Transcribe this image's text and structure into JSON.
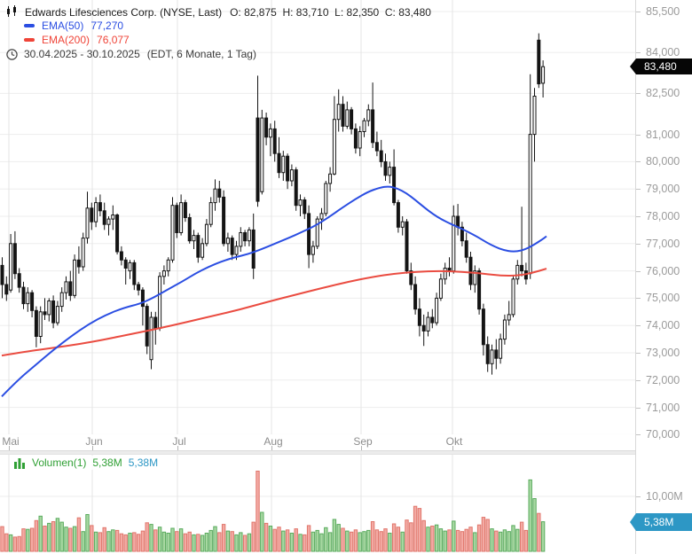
{
  "header": {
    "title": "Edwards Lifesciences Corp. (NYSE, Last)",
    "ohlc": "O: 82,875  H: 83,710  L: 82,350  C: 83,480",
    "ema50_label": "EMA(50)",
    "ema50_value": "77,270",
    "ema200_label": "EMA(200)",
    "ema200_value": "76,077",
    "date_range": "30.04.2025 - 30.10.2025",
    "range_info": "(EDT, 6 Monate, 1 Tag)"
  },
  "price_axis": {
    "last_price_label": "83,480"
  },
  "volume_panel": {
    "legend_label": "Volumen(1)",
    "value_green": "5,38M",
    "value_blue": "5,38M",
    "badge_label": "5,38M"
  },
  "colors": {
    "grid": "#ededed",
    "grid_v": "#e4e4e4",
    "candle": "#141414",
    "candle_up_fill": "#ffffff",
    "ema50": "#2b4ee2",
    "ema200": "#ea4c41",
    "vol_up_fill": "#a8d8a2",
    "vol_up_stroke": "#5aab5e",
    "vol_down_fill": "#f3aaa4",
    "vol_down_stroke": "#e0766b",
    "price_badge_bg": "#060606",
    "volume_badge_bg": "#2d97c5"
  },
  "chart_data": {
    "type": "candlestick",
    "title": "Edwards Lifesciences Corp. (NYSE, Last)",
    "legend": [
      "EMA(50) 77,270",
      "EMA(200) 76,077",
      "Volumen(1) 5,38M"
    ],
    "x_start": 2.5,
    "x_step": 4.8,
    "y_top": 13,
    "y_scale": 30.8,
    "price_ref": 85.5,
    "vol_base_y": 622,
    "vol_scale": 6.2,
    "ylim": [
      70.0,
      85.5
    ],
    "last_price": 83.48,
    "last_volume": 5.38,
    "price_ticks": [
      {
        "label": "85,500",
        "value": 85.5
      },
      {
        "label": "84,000",
        "value": 84.0
      },
      {
        "label": "82,500",
        "value": 82.5
      },
      {
        "label": "81,000",
        "value": 81.0
      },
      {
        "label": "80,000",
        "value": 80.0
      },
      {
        "label": "79,000",
        "value": 79.0
      },
      {
        "label": "78,000",
        "value": 78.0
      },
      {
        "label": "77,000",
        "value": 77.0
      },
      {
        "label": "76,000",
        "value": 76.0
      },
      {
        "label": "75,000",
        "value": 75.0
      },
      {
        "label": "74,000",
        "value": 74.0
      },
      {
        "label": "73,000",
        "value": 73.0
      },
      {
        "label": "72,000",
        "value": 72.0
      },
      {
        "label": "71,000",
        "value": 71.0
      },
      {
        "label": "70,000",
        "value": 70.0
      }
    ],
    "volume_tick": {
      "label": "10,00M",
      "value": 10
    },
    "months": [
      {
        "label": "Mai",
        "x": 10
      },
      {
        "label": "Jun",
        "x": 104
      },
      {
        "label": "Jul",
        "x": 200
      },
      {
        "label": "Aug",
        "x": 306
      },
      {
        "label": "Sep",
        "x": 407
      },
      {
        "label": "Okt",
        "x": 510
      }
    ],
    "candles": [
      [
        76.2,
        76.5,
        75.0,
        75.5
      ],
      [
        75.5,
        75.8,
        74.9,
        75.15
      ],
      [
        75.3,
        77.35,
        75.2,
        77.0
      ],
      [
        77.0,
        77.45,
        75.7,
        75.9
      ],
      [
        75.9,
        76.1,
        75.2,
        75.4
      ],
      [
        75.4,
        75.6,
        74.6,
        74.8
      ],
      [
        74.8,
        75.4,
        74.5,
        75.2
      ],
      [
        75.2,
        75.3,
        74.3,
        74.55
      ],
      [
        74.55,
        74.7,
        73.2,
        73.6
      ],
      [
        73.6,
        74.7,
        73.35,
        74.5
      ],
      [
        74.5,
        75.0,
        74.2,
        74.4
      ],
      [
        74.4,
        75.0,
        74.15,
        74.9
      ],
      [
        74.9,
        75.1,
        73.9,
        74.1
      ],
      [
        74.1,
        74.9,
        74.0,
        74.7
      ],
      [
        74.7,
        75.4,
        74.5,
        75.2
      ],
      [
        75.2,
        75.8,
        74.95,
        75.6
      ],
      [
        75.6,
        76.0,
        74.9,
        75.1
      ],
      [
        75.1,
        76.6,
        75.0,
        76.4
      ],
      [
        76.4,
        76.9,
        75.9,
        76.15
      ],
      [
        76.15,
        77.4,
        76.0,
        77.2
      ],
      [
        77.2,
        78.9,
        77.0,
        78.3
      ],
      [
        78.3,
        78.5,
        77.5,
        77.8
      ],
      [
        77.8,
        78.7,
        77.6,
        78.5
      ],
      [
        78.5,
        78.8,
        78.0,
        78.2
      ],
      [
        78.2,
        78.5,
        77.5,
        77.7
      ],
      [
        77.7,
        78.0,
        77.3,
        77.9
      ],
      [
        77.9,
        78.4,
        77.5,
        78.05
      ],
      [
        78.05,
        78.1,
        76.6,
        76.7
      ],
      [
        76.7,
        76.9,
        76.2,
        76.4
      ],
      [
        76.4,
        76.5,
        75.5,
        76.1
      ],
      [
        76.0,
        76.4,
        75.7,
        76.3
      ],
      [
        76.3,
        76.4,
        75.3,
        75.5
      ],
      [
        75.5,
        75.6,
        75.1,
        75.3
      ],
      [
        75.3,
        75.4,
        74.0,
        74.7
      ],
      [
        74.7,
        74.8,
        72.95,
        73.25
      ],
      [
        72.75,
        74.5,
        72.4,
        74.3
      ],
      [
        74.3,
        74.5,
        73.3,
        73.9
      ],
      [
        73.9,
        75.95,
        73.8,
        75.8
      ],
      [
        75.8,
        76.2,
        75.5,
        76.0
      ],
      [
        76.0,
        76.5,
        75.8,
        76.4
      ],
      [
        76.4,
        78.7,
        76.3,
        78.4
      ],
      [
        78.4,
        78.5,
        77.2,
        77.4
      ],
      [
        77.4,
        78.8,
        77.3,
        78.5
      ],
      [
        78.5,
        78.6,
        77.8,
        77.95
      ],
      [
        77.95,
        78.1,
        77.0,
        77.1
      ],
      [
        77.1,
        77.5,
        76.8,
        77.3
      ],
      [
        77.3,
        77.4,
        76.3,
        76.5
      ],
      [
        76.5,
        77.2,
        76.4,
        77.0
      ],
      [
        77.0,
        77.9,
        76.9,
        77.7
      ],
      [
        77.7,
        78.7,
        77.6,
        78.5
      ],
      [
        78.5,
        79.35,
        78.2,
        79.0
      ],
      [
        79.0,
        79.3,
        78.5,
        78.7
      ],
      [
        78.7,
        78.95,
        76.9,
        77.0
      ],
      [
        77.0,
        77.4,
        76.7,
        77.2
      ],
      [
        77.2,
        77.3,
        76.4,
        76.6
      ],
      [
        76.6,
        77.1,
        76.4,
        76.9
      ],
      [
        76.9,
        77.6,
        76.7,
        77.4
      ],
      [
        77.4,
        77.5,
        76.9,
        77.1
      ],
      [
        77.1,
        77.6,
        76.9,
        77.5
      ],
      [
        77.5,
        78.1,
        75.7,
        76.1
      ],
      [
        81.6,
        83.15,
        78.35,
        78.55
      ],
      [
        78.9,
        81.9,
        78.8,
        81.6
      ],
      [
        81.6,
        81.8,
        80.6,
        80.9
      ],
      [
        80.9,
        81.4,
        80.2,
        81.2
      ],
      [
        81.2,
        81.5,
        80.0,
        80.3
      ],
      [
        80.3,
        80.9,
        79.4,
        79.6
      ],
      [
        79.6,
        80.4,
        79.3,
        80.2
      ],
      [
        80.2,
        80.3,
        79.0,
        79.3
      ],
      [
        79.3,
        79.9,
        79.1,
        79.7
      ],
      [
        79.7,
        79.8,
        78.2,
        78.4
      ],
      [
        78.4,
        78.8,
        78.0,
        78.6
      ],
      [
        78.6,
        78.7,
        77.9,
        78.1
      ],
      [
        78.1,
        78.4,
        76.1,
        76.6
      ],
      [
        76.6,
        77.1,
        76.3,
        76.9
      ],
      [
        76.9,
        78.0,
        76.8,
        77.9
      ],
      [
        77.9,
        78.3,
        77.5,
        78.1
      ],
      [
        78.1,
        79.3,
        78.0,
        79.2
      ],
      [
        79.2,
        79.8,
        78.9,
        79.55
      ],
      [
        79.55,
        82.4,
        79.5,
        81.55
      ],
      [
        81.55,
        82.65,
        81.1,
        82.1
      ],
      [
        82.1,
        82.4,
        81.1,
        81.3
      ],
      [
        81.3,
        82.2,
        81.2,
        81.9
      ],
      [
        81.9,
        82.0,
        81.0,
        81.2
      ],
      [
        81.2,
        81.4,
        80.3,
        80.5
      ],
      [
        80.5,
        81.3,
        80.2,
        81.1
      ],
      [
        81.1,
        81.6,
        80.9,
        81.5
      ],
      [
        81.5,
        82.1,
        81.3,
        81.9
      ],
      [
        81.9,
        82.9,
        80.5,
        80.7
      ],
      [
        80.7,
        81.1,
        80.2,
        80.4
      ],
      [
        80.4,
        80.8,
        79.8,
        80.0
      ],
      [
        80.0,
        80.3,
        79.3,
        79.5
      ],
      [
        79.5,
        80.0,
        79.2,
        79.8
      ],
      [
        79.8,
        80.45,
        78.4,
        78.5
      ],
      [
        78.5,
        78.6,
        77.4,
        77.6
      ],
      [
        77.6,
        78.0,
        77.3,
        77.8
      ],
      [
        77.8,
        77.9,
        75.9,
        76.0
      ],
      [
        76.0,
        76.3,
        75.3,
        75.5
      ],
      [
        75.5,
        75.8,
        74.4,
        74.6
      ],
      [
        74.6,
        75.0,
        73.6,
        74.0
      ],
      [
        74.0,
        74.4,
        73.25,
        73.8
      ],
      [
        73.8,
        74.5,
        73.6,
        74.3
      ],
      [
        74.3,
        74.6,
        73.9,
        74.1
      ],
      [
        74.1,
        75.2,
        74.0,
        75.0
      ],
      [
        75.0,
        75.9,
        74.9,
        75.7
      ],
      [
        75.7,
        76.3,
        75.5,
        76.1
      ],
      [
        76.1,
        76.5,
        75.8,
        76.0
      ],
      [
        76.0,
        78.4,
        75.9,
        78.0
      ],
      [
        78.0,
        78.45,
        77.3,
        77.6
      ],
      [
        77.6,
        77.8,
        76.9,
        77.1
      ],
      [
        77.1,
        77.4,
        76.3,
        76.5
      ],
      [
        76.5,
        76.7,
        75.3,
        75.5
      ],
      [
        75.5,
        76.2,
        75.2,
        76.0
      ],
      [
        76.0,
        76.1,
        74.4,
        74.6
      ],
      [
        74.6,
        74.8,
        72.9,
        73.3
      ],
      [
        73.3,
        73.6,
        72.3,
        72.6
      ],
      [
        72.6,
        73.3,
        72.2,
        73.1
      ],
      [
        73.1,
        73.5,
        72.4,
        72.8
      ],
      [
        72.8,
        73.7,
        72.6,
        73.5
      ],
      [
        73.5,
        74.4,
        73.3,
        74.2
      ],
      [
        74.2,
        74.9,
        74.0,
        74.4
      ],
      [
        74.4,
        75.8,
        74.3,
        75.7
      ],
      [
        75.7,
        76.4,
        75.5,
        76.2
      ],
      [
        76.2,
        78.35,
        75.8,
        76.0
      ],
      [
        76.0,
        76.3,
        75.5,
        75.7
      ],
      [
        75.9,
        83.2,
        75.7,
        81.0
      ],
      [
        81.0,
        82.7,
        80.0,
        82.4
      ],
      [
        84.45,
        84.7,
        82.7,
        82.85
      ],
      [
        82.875,
        83.71,
        82.35,
        83.48
      ]
    ],
    "volumes": [
      4.5,
      3.2,
      3.0,
      2.6,
      2.7,
      4.1,
      4.0,
      4.2,
      5.6,
      6.4,
      4.6,
      5.1,
      5.4,
      6.0,
      5.3,
      4.4,
      4.2,
      4.5,
      6.1,
      3.6,
      6.7,
      4.7,
      3.5,
      3.4,
      4.3,
      3.6,
      3.9,
      3.8,
      3.2,
      3.0,
      3.3,
      3.4,
      3.1,
      3.7,
      5.2,
      4.9,
      3.9,
      4.4,
      3.5,
      3.3,
      4.2,
      3.6,
      4.1,
      3.2,
      3.5,
      3.0,
      3.1,
      2.9,
      3.3,
      3.8,
      4.5,
      3.4,
      4.9,
      3.7,
      3.6,
      3.0,
      3.4,
      2.9,
      3.2,
      5.3,
      14.6,
      7.1,
      5.1,
      4.6,
      4.0,
      4.4,
      3.7,
      3.9,
      3.3,
      4.1,
      3.1,
      3.0,
      4.7,
      3.5,
      3.8,
      3.2,
      4.3,
      3.4,
      5.8,
      4.9,
      4.2,
      3.7,
      3.5,
      3.9,
      3.4,
      3.6,
      3.8,
      5.4,
      3.9,
      3.6,
      4.1,
      3.3,
      5.0,
      4.4,
      3.5,
      5.7,
      5.2,
      8.2,
      7.8,
      5.6,
      4.4,
      4.6,
      4.8,
      4.1,
      3.7,
      3.9,
      5.5,
      3.8,
      3.6,
      4.0,
      4.4,
      3.4,
      4.8,
      6.2,
      5.8,
      4.1,
      3.7,
      3.5,
      3.9,
      3.6,
      4.7,
      4.0,
      5.3,
      3.8,
      13.0,
      9.6,
      6.9,
      5.38
    ],
    "ema50": [
      [
        2,
        71.4
      ],
      [
        20,
        72.0
      ],
      [
        40,
        72.55
      ],
      [
        60,
        73.1
      ],
      [
        80,
        73.6
      ],
      [
        100,
        74.05
      ],
      [
        120,
        74.4
      ],
      [
        140,
        74.65
      ],
      [
        158,
        74.8
      ],
      [
        172,
        75.0
      ],
      [
        188,
        75.3
      ],
      [
        205,
        75.6
      ],
      [
        220,
        75.9
      ],
      [
        235,
        76.15
      ],
      [
        250,
        76.35
      ],
      [
        265,
        76.5
      ],
      [
        280,
        76.62
      ],
      [
        295,
        76.8
      ],
      [
        310,
        77.0
      ],
      [
        325,
        77.2
      ],
      [
        340,
        77.42
      ],
      [
        355,
        77.65
      ],
      [
        370,
        77.95
      ],
      [
        385,
        78.3
      ],
      [
        400,
        78.62
      ],
      [
        415,
        78.9
      ],
      [
        428,
        79.05
      ],
      [
        438,
        79.1
      ],
      [
        448,
        79.02
      ],
      [
        458,
        78.85
      ],
      [
        468,
        78.6
      ],
      [
        478,
        78.33
      ],
      [
        488,
        78.08
      ],
      [
        498,
        77.88
      ],
      [
        508,
        77.72
      ],
      [
        518,
        77.58
      ],
      [
        528,
        77.42
      ],
      [
        538,
        77.25
      ],
      [
        548,
        77.05
      ],
      [
        558,
        76.88
      ],
      [
        568,
        76.76
      ],
      [
        578,
        76.7
      ],
      [
        588,
        76.74
      ],
      [
        596,
        76.85
      ],
      [
        604,
        77.0
      ],
      [
        611,
        77.15
      ],
      [
        616,
        77.27
      ]
    ],
    "ema200": [
      [
        2,
        72.9
      ],
      [
        30,
        73.05
      ],
      [
        60,
        73.18
      ],
      [
        90,
        73.32
      ],
      [
        120,
        73.5
      ],
      [
        150,
        73.7
      ],
      [
        180,
        73.9
      ],
      [
        210,
        74.12
      ],
      [
        240,
        74.35
      ],
      [
        270,
        74.58
      ],
      [
        300,
        74.85
      ],
      [
        330,
        75.1
      ],
      [
        360,
        75.35
      ],
      [
        390,
        75.58
      ],
      [
        420,
        75.78
      ],
      [
        445,
        75.9
      ],
      [
        470,
        75.97
      ],
      [
        495,
        76.0
      ],
      [
        520,
        75.97
      ],
      [
        545,
        75.9
      ],
      [
        565,
        75.82
      ],
      [
        585,
        75.83
      ],
      [
        600,
        75.93
      ],
      [
        616,
        76.08
      ]
    ]
  }
}
